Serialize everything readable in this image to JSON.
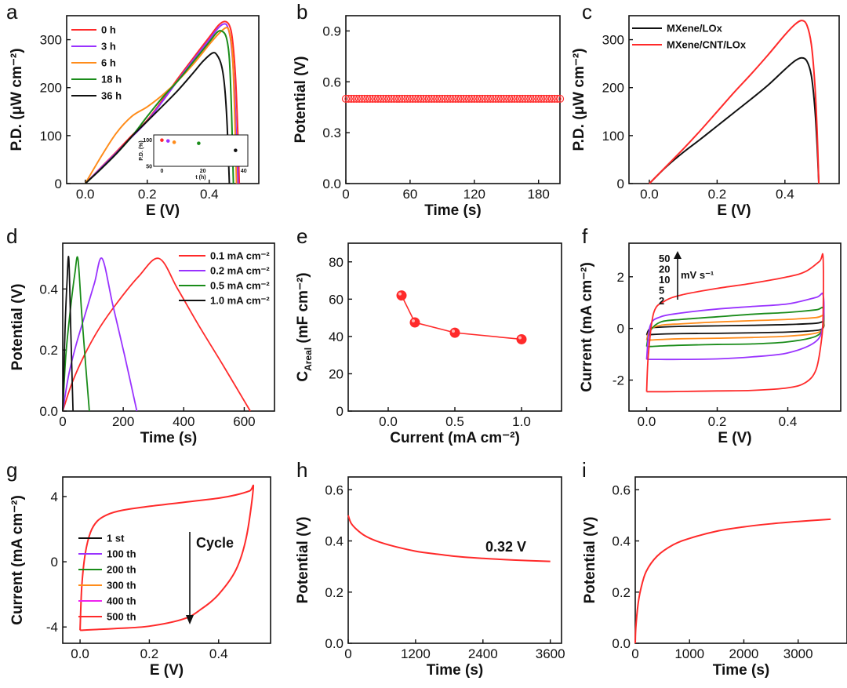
{
  "chart_data": [
    {
      "panel": "a",
      "type": "line",
      "xlabel": "E (V)",
      "ylabel": "P.D. (μW cm⁻²)",
      "xlim": [
        -0.06,
        0.56
      ],
      "ylim": [
        0,
        350
      ],
      "xticks": [
        0.0,
        0.2,
        0.4
      ],
      "yticks": [
        0,
        100,
        200,
        300
      ],
      "legend_position": "top-left",
      "grid": false,
      "series": [
        {
          "name": "0 h",
          "color": "#ff2a2a",
          "x": [
            0,
            0.05,
            0.1,
            0.15,
            0.2,
            0.25,
            0.3,
            0.35,
            0.4,
            0.43,
            0.45,
            0.465,
            0.475,
            0.485,
            0.492,
            0.497
          ],
          "y": [
            0,
            33,
            66,
            100,
            132,
            175,
            220,
            263,
            305,
            330,
            338,
            330,
            300,
            220,
            110,
            0
          ]
        },
        {
          "name": "3 h",
          "color": "#9932ff",
          "x": [
            0,
            0.05,
            0.1,
            0.15,
            0.2,
            0.25,
            0.3,
            0.35,
            0.4,
            0.43,
            0.45,
            0.46,
            0.47,
            0.48,
            0.487,
            0.493
          ],
          "y": [
            0,
            32,
            64,
            97,
            130,
            172,
            216,
            259,
            300,
            325,
            333,
            325,
            295,
            215,
            105,
            0
          ]
        },
        {
          "name": "6 h",
          "color": "#ff8c1a",
          "x": [
            0,
            0.05,
            0.1,
            0.15,
            0.2,
            0.25,
            0.3,
            0.35,
            0.4,
            0.43,
            0.455,
            0.465,
            0.475,
            0.482,
            0.488
          ],
          "y": [
            0,
            55,
            105,
            140,
            160,
            185,
            215,
            250,
            290,
            312,
            325,
            315,
            270,
            150,
            0
          ]
        },
        {
          "name": "18 h",
          "color": "#1a8c1a",
          "x": [
            0,
            0.05,
            0.1,
            0.15,
            0.2,
            0.25,
            0.3,
            0.35,
            0.4,
            0.425,
            0.44,
            0.455,
            0.465,
            0.472,
            0.478
          ],
          "y": [
            0,
            30,
            62,
            98,
            140,
            180,
            215,
            255,
            295,
            315,
            318,
            305,
            260,
            150,
            0
          ]
        },
        {
          "name": "36 h",
          "color": "#111111",
          "x": [
            0,
            0.05,
            0.1,
            0.15,
            0.2,
            0.25,
            0.3,
            0.35,
            0.38,
            0.41,
            0.425,
            0.44,
            0.45,
            0.458,
            0.465
          ],
          "y": [
            0,
            30,
            62,
            98,
            130,
            162,
            195,
            232,
            255,
            272,
            268,
            245,
            200,
            120,
            0
          ]
        }
      ],
      "inset": {
        "xlabel": "t (h)",
        "ylabel": "P.D. (%)",
        "xlim": [
          -4,
          42
        ],
        "ylim": [
          50,
          110
        ],
        "xticks": [
          0,
          20,
          40
        ],
        "yticks": [
          50,
          100
        ],
        "points": [
          {
            "x": 0,
            "y": 100,
            "color": "#ff2a2a"
          },
          {
            "x": 3,
            "y": 98.5,
            "color": "#9932ff"
          },
          {
            "x": 6,
            "y": 96,
            "color": "#ff8c1a"
          },
          {
            "x": 18,
            "y": 94,
            "color": "#1a8c1a"
          },
          {
            "x": 36,
            "y": 80.5,
            "color": "#111111"
          }
        ]
      }
    },
    {
      "panel": "b",
      "type": "scatter",
      "xlabel": "Time (s)",
      "ylabel": "Potential (V)",
      "xlim": [
        0,
        200
      ],
      "ylim": [
        0,
        0.99
      ],
      "xticks": [
        0,
        60,
        120,
        180
      ],
      "yticks": [
        0.0,
        0.3,
        0.6,
        0.9
      ],
      "grid": false,
      "series": [
        {
          "name": "",
          "color": "#ff2a2a",
          "x_start": 0,
          "x_end": 200,
          "x_step": 2.5,
          "y": 0.5
        }
      ]
    },
    {
      "panel": "c",
      "type": "line",
      "xlabel": "E (V)",
      "ylabel": "P.D. (μW cm⁻²)",
      "xlim": [
        -0.06,
        0.56
      ],
      "ylim": [
        0,
        350
      ],
      "xticks": [
        0.0,
        0.2,
        0.4
      ],
      "yticks": [
        0,
        100,
        200,
        300
      ],
      "legend_position": "top-left",
      "grid": false,
      "series": [
        {
          "name": "MXene/LOx",
          "color": "#111111",
          "x": [
            0,
            0.05,
            0.1,
            0.15,
            0.2,
            0.25,
            0.3,
            0.35,
            0.4,
            0.43,
            0.45,
            0.465,
            0.478,
            0.488,
            0.495,
            0.5
          ],
          "y": [
            0,
            35,
            65,
            92,
            120,
            148,
            176,
            205,
            238,
            256,
            262,
            255,
            225,
            160,
            80,
            0
          ]
        },
        {
          "name": "MXene/CNT/LOx",
          "color": "#ff2a2a",
          "x": [
            0,
            0.05,
            0.1,
            0.15,
            0.2,
            0.25,
            0.3,
            0.35,
            0.4,
            0.43,
            0.45,
            0.465,
            0.478,
            0.488,
            0.495,
            0.5
          ],
          "y": [
            0,
            36,
            72,
            110,
            150,
            190,
            228,
            268,
            310,
            332,
            340,
            330,
            290,
            210,
            110,
            0
          ]
        }
      ]
    },
    {
      "panel": "d",
      "type": "line",
      "xlabel": "Time (s)",
      "ylabel": "Potential (V)",
      "xlim": [
        0,
        700
      ],
      "ylim": [
        0,
        0.55
      ],
      "xticks": [
        0,
        200,
        400,
        600
      ],
      "yticks": [
        0.0,
        0.2,
        0.4
      ],
      "legend_position": "top-right",
      "grid": false,
      "series": [
        {
          "name": "0.1 mA cm⁻²",
          "color": "#ff2a2a",
          "x": [
            0,
            30,
            70,
            120,
            180,
            250,
            318,
            380,
            450,
            530,
            620
          ],
          "y": [
            0,
            0.09,
            0.18,
            0.27,
            0.355,
            0.44,
            0.5,
            0.4,
            0.28,
            0.15,
            0
          ]
        },
        {
          "name": "0.2 mA cm⁻²",
          "color": "#9932ff",
          "x": [
            0,
            20,
            45,
            75,
            105,
            130,
            165,
            205,
            245
          ],
          "y": [
            0,
            0.12,
            0.22,
            0.32,
            0.42,
            0.5,
            0.35,
            0.18,
            0
          ]
        },
        {
          "name": "0.5 mA cm⁻²",
          "color": "#1a8c1a",
          "x": [
            0,
            10,
            25,
            40,
            50,
            62,
            75,
            88
          ],
          "y": [
            0,
            0.18,
            0.33,
            0.45,
            0.5,
            0.33,
            0.16,
            0
          ]
        },
        {
          "name": "1.0 mA cm⁻²",
          "color": "#111111",
          "x": [
            0,
            8,
            14,
            20,
            27,
            34
          ],
          "y": [
            0,
            0.28,
            0.42,
            0.5,
            0.25,
            0
          ]
        }
      ]
    },
    {
      "panel": "e",
      "type": "scatter",
      "xlabel": "Current (mA cm⁻²)",
      "ylabel": "C_Areal (mF cm⁻²)",
      "xlim": [
        -0.3,
        1.3
      ],
      "ylim": [
        0,
        90
      ],
      "xticks": [
        0.0,
        0.5,
        1.0
      ],
      "yticks": [
        0,
        20,
        40,
        60,
        80
      ],
      "grid": false,
      "series": [
        {
          "name": "",
          "color": "#ff2a2a",
          "x": [
            0.1,
            0.2,
            0.5,
            1.0
          ],
          "y": [
            62,
            47.5,
            42,
            38.5
          ]
        }
      ]
    },
    {
      "panel": "f",
      "type": "line",
      "xlabel": "E (V)",
      "ylabel": "Current (mA cm⁻²)",
      "xlim": [
        -0.05,
        0.55
      ],
      "ylim": [
        -3.2,
        3.3
      ],
      "xticks": [
        0.0,
        0.2,
        0.4
      ],
      "yticks": [
        -2,
        0,
        2
      ],
      "legend_position": "top-left",
      "legend_unit": "mV s⁻¹",
      "grid": false,
      "series": [
        {
          "name": "50",
          "color": "#ff2a2a",
          "x": [
            0,
            0.005,
            0.02,
            0.05,
            0.1,
            0.2,
            0.3,
            0.4,
            0.45,
            0.49,
            0.5,
            0.5,
            0.495,
            0.48,
            0.45,
            0.4,
            0.3,
            0.2,
            0.1,
            0.05,
            0.02,
            0.005,
            0
          ],
          "y": [
            -2.45,
            -1.0,
            0.6,
            1.05,
            1.3,
            1.55,
            1.75,
            2.0,
            2.2,
            2.6,
            2.75,
            0.5,
            -0.5,
            -1.6,
            -2.1,
            -2.3,
            -2.4,
            -2.42,
            -2.44,
            -2.45,
            -2.45,
            -2.45,
            -2.45
          ]
        },
        {
          "name": "20",
          "color": "#9932ff",
          "x": [
            0,
            0.01,
            0.04,
            0.1,
            0.2,
            0.3,
            0.4,
            0.48,
            0.5,
            0.5,
            0.48,
            0.4,
            0.3,
            0.2,
            0.1,
            0.04,
            0.01,
            0
          ],
          "y": [
            -1.2,
            0.1,
            0.45,
            0.6,
            0.75,
            0.85,
            0.95,
            1.2,
            1.3,
            0.2,
            -0.5,
            -0.95,
            -1.1,
            -1.18,
            -1.2,
            -1.2,
            -1.2,
            -1.2
          ]
        },
        {
          "name": "10",
          "color": "#1a8c1a",
          "x": [
            0,
            0.01,
            0.04,
            0.1,
            0.2,
            0.3,
            0.4,
            0.48,
            0.5,
            0.5,
            0.48,
            0.4,
            0.3,
            0.2,
            0.1,
            0.04,
            0.01,
            0
          ],
          "y": [
            -0.7,
            -0.1,
            0.25,
            0.35,
            0.45,
            0.55,
            0.62,
            0.72,
            0.78,
            0.1,
            -0.3,
            -0.52,
            -0.6,
            -0.62,
            -0.65,
            -0.68,
            -0.7,
            -0.7
          ]
        },
        {
          "name": "5",
          "color": "#ff8c1a",
          "x": [
            0,
            0.01,
            0.04,
            0.1,
            0.2,
            0.3,
            0.4,
            0.48,
            0.5,
            0.5,
            0.48,
            0.4,
            0.3,
            0.2,
            0.1,
            0.04,
            0.01,
            0
          ],
          "y": [
            -0.45,
            -0.05,
            0.12,
            0.18,
            0.25,
            0.3,
            0.35,
            0.42,
            0.48,
            0.05,
            -0.18,
            -0.3,
            -0.35,
            -0.38,
            -0.4,
            -0.43,
            -0.45,
            -0.45
          ]
        },
        {
          "name": "2",
          "color": "#111111",
          "x": [
            0,
            0.01,
            0.04,
            0.1,
            0.2,
            0.3,
            0.4,
            0.48,
            0.5,
            0.5,
            0.48,
            0.4,
            0.3,
            0.2,
            0.1,
            0.04,
            0.01,
            0
          ],
          "y": [
            -0.25,
            0.0,
            0.05,
            0.08,
            0.1,
            0.12,
            0.15,
            0.2,
            0.25,
            0.02,
            -0.08,
            -0.14,
            -0.17,
            -0.19,
            -0.2,
            -0.22,
            -0.24,
            -0.25
          ]
        }
      ]
    },
    {
      "panel": "g",
      "type": "line",
      "xlabel": "E (V)",
      "ylabel": "Current (mA cm⁻²)",
      "xlim": [
        -0.05,
        0.55
      ],
      "ylim": [
        -5,
        5.2
      ],
      "xticks": [
        0.0,
        0.2,
        0.4
      ],
      "yticks": [
        -4,
        0,
        4
      ],
      "legend_position": "center-left",
      "annotation": "Cycle",
      "grid": false,
      "series": [
        {
          "name": "1 st",
          "color": "#111111"
        },
        {
          "name": "100 th",
          "color": "#9932ff"
        },
        {
          "name": "200 th",
          "color": "#1a8c1a"
        },
        {
          "name": "300 th",
          "color": "#ff8c1a"
        },
        {
          "name": "400 th",
          "color": "#ee22ee"
        },
        {
          "name": "500 th",
          "color": "#ff2a2a",
          "x": [
            0,
            0.005,
            0.015,
            0.03,
            0.05,
            0.08,
            0.12,
            0.2,
            0.3,
            0.4,
            0.45,
            0.49,
            0.5,
            0.48,
            0.45,
            0.4,
            0.35,
            0.3,
            0.2,
            0.1,
            0.05,
            0.02,
            0.005,
            0
          ],
          "y": [
            -4.2,
            -1.5,
            0.5,
            1.8,
            2.5,
            2.9,
            3.15,
            3.4,
            3.65,
            3.9,
            4.1,
            4.35,
            4.5,
            1.5,
            -0.5,
            -2.0,
            -2.9,
            -3.5,
            -3.95,
            -4.1,
            -4.15,
            -4.18,
            -4.2,
            -4.2
          ]
        }
      ]
    },
    {
      "panel": "h",
      "type": "line",
      "xlabel": "Time (s)",
      "ylabel": "Potential (V)",
      "xlim": [
        0,
        3800
      ],
      "ylim": [
        0,
        0.65
      ],
      "xticks": [
        0,
        1200,
        2400,
        3600
      ],
      "yticks": [
        0.0,
        0.2,
        0.4,
        0.6
      ],
      "annotation": "0.32 V",
      "grid": false,
      "series": [
        {
          "name": "",
          "color": "#ff2a2a",
          "x": [
            0,
            50,
            150,
            300,
            500,
            800,
            1200,
            1600,
            2000,
            2400,
            2800,
            3200,
            3600
          ],
          "y": [
            0.5,
            0.47,
            0.445,
            0.42,
            0.4,
            0.38,
            0.36,
            0.348,
            0.338,
            0.332,
            0.327,
            0.323,
            0.32
          ]
        }
      ]
    },
    {
      "panel": "i",
      "type": "line",
      "xlabel": "Time (s)",
      "ylabel": "Potential (V)",
      "xlim": [
        0,
        3900
      ],
      "ylim": [
        0,
        0.65
      ],
      "xticks": [
        0,
        1000,
        2000,
        3000
      ],
      "yticks": [
        0.0,
        0.2,
        0.4,
        0.6
      ],
      "grid": false,
      "series": [
        {
          "name": "",
          "color": "#ff2a2a",
          "x": [
            0,
            10,
            50,
            100,
            200,
            400,
            700,
            1000,
            1500,
            2000,
            2500,
            3000,
            3600
          ],
          "y": [
            0.0,
            0.06,
            0.15,
            0.21,
            0.28,
            0.34,
            0.385,
            0.41,
            0.438,
            0.455,
            0.467,
            0.476,
            0.485
          ]
        }
      ]
    }
  ]
}
